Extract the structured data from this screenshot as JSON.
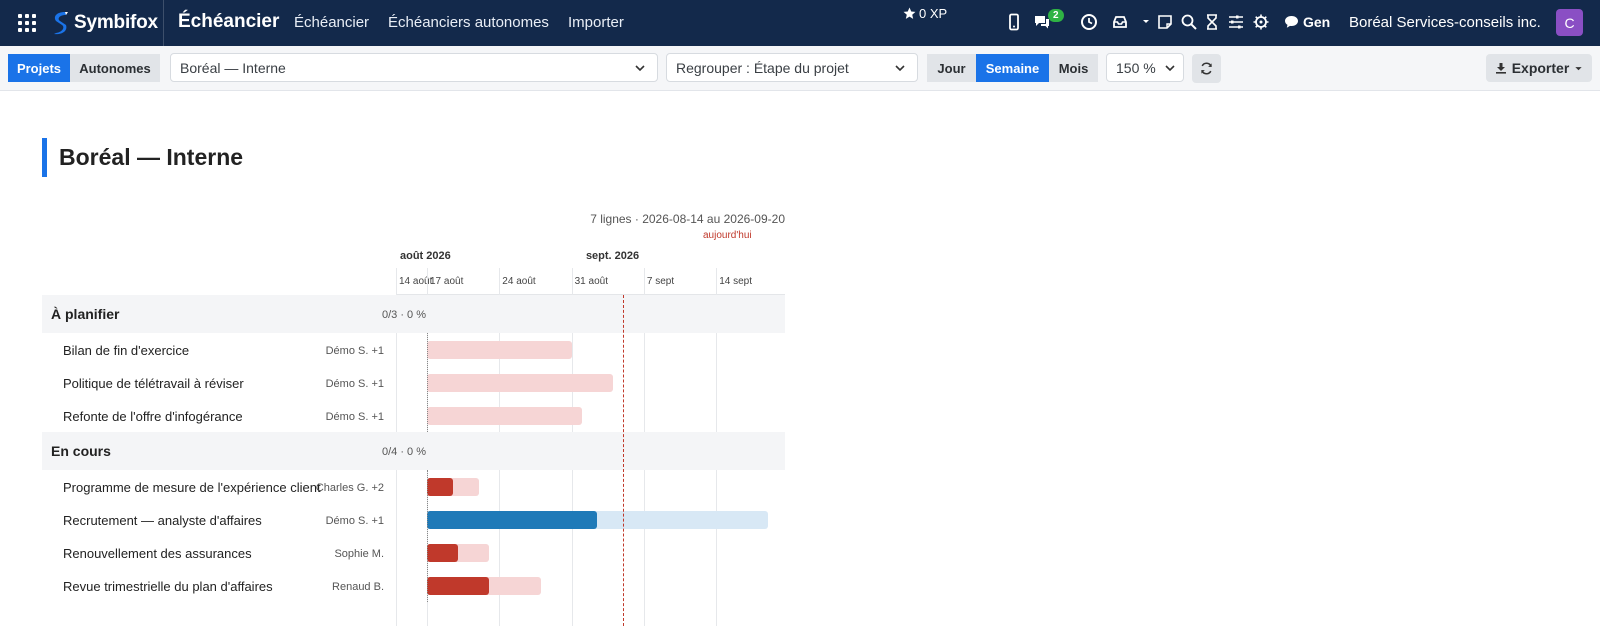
{
  "navbar": {
    "brand": "Symbifox",
    "title": "Échéancier",
    "links": [
      "Échéancier",
      "Échéanciers autonomes",
      "Importer"
    ],
    "xp": "0 XP",
    "messages_badge": "2",
    "gen_label": "Gen",
    "organization": "Boréal Services-conseils inc.",
    "avatar_initial": "C"
  },
  "toolbar": {
    "view_tabs": [
      "Projets",
      "Autonomes"
    ],
    "active_view": "Projets",
    "project_select": "Boréal — Interne",
    "group_select": "Regrouper : Étape du projet",
    "scale_tabs": [
      "Jour",
      "Semaine",
      "Mois"
    ],
    "active_scale": "Semaine",
    "zoom": "150 %",
    "export_label": "Exporter"
  },
  "page": {
    "title": "Boréal — Interne"
  },
  "chart_data": {
    "type": "gantt",
    "summary": "7 lignes · 2026-08-14 au 2026-09-20",
    "today_label": "aujourd'hui",
    "today": "2026-09-05",
    "range_start": "2026-08-14",
    "range_end": "2026-09-20",
    "months": [
      {
        "label": "août 2026",
        "start": "2026-08-14"
      },
      {
        "label": "sept. 2026",
        "start": "2026-09-01"
      }
    ],
    "weeks": [
      {
        "label": "14 août",
        "date": "2026-08-14"
      },
      {
        "label": "17 août",
        "date": "2026-08-17"
      },
      {
        "label": "24 août",
        "date": "2026-08-24"
      },
      {
        "label": "31 août",
        "date": "2026-08-31"
      },
      {
        "label": "7 sept",
        "date": "2026-09-07"
      },
      {
        "label": "14 sept",
        "date": "2026-09-14"
      }
    ],
    "groups": [
      {
        "name": "À planifier",
        "stat": "0/3 · 0 %",
        "tasks": [
          {
            "name": "Bilan de fin d'exercice",
            "owner": "Démo S. +1",
            "start": "2026-08-17",
            "end": "2026-08-31",
            "progress": 0,
            "status": "late"
          },
          {
            "name": "Politique de télétravail à réviser",
            "owner": "Démo S. +1",
            "start": "2026-08-17",
            "end": "2026-09-04",
            "progress": 0,
            "status": "late"
          },
          {
            "name": "Refonte de l'offre d'infogérance",
            "owner": "Démo S. +1",
            "start": "2026-08-17",
            "end": "2026-09-01",
            "progress": 0,
            "status": "late"
          }
        ]
      },
      {
        "name": "En cours",
        "stat": "0/4 · 0 %",
        "tasks": [
          {
            "name": "Programme de mesure de l'expérience client",
            "owner": "Charles G. +2",
            "start": "2026-08-17",
            "end": "2026-08-22",
            "progress": 50,
            "status": "late"
          },
          {
            "name": "Recrutement — analyste d'affaires",
            "owner": "Démo S. +1",
            "start": "2026-08-17",
            "end": "2026-09-19",
            "progress": 50,
            "status": "ontrack"
          },
          {
            "name": "Renouvellement des assurances",
            "owner": "Sophie M.",
            "start": "2026-08-17",
            "end": "2026-08-23",
            "progress": 50,
            "status": "late"
          },
          {
            "name": "Revue trimestrielle du plan d'affaires",
            "owner": "Renaud B.",
            "start": "2026-08-17",
            "end": "2026-08-28",
            "progress": 55,
            "status": "late"
          }
        ]
      }
    ]
  },
  "colors": {
    "navbar_bg": "#13294b",
    "accent": "#1a73e8",
    "late_done": "#c0392b",
    "late_remaining": "#f6d5d5",
    "ontrack_done": "#1f7ab8",
    "ontrack_remaining": "#d8e8f5",
    "today_line": "#c0392b"
  }
}
